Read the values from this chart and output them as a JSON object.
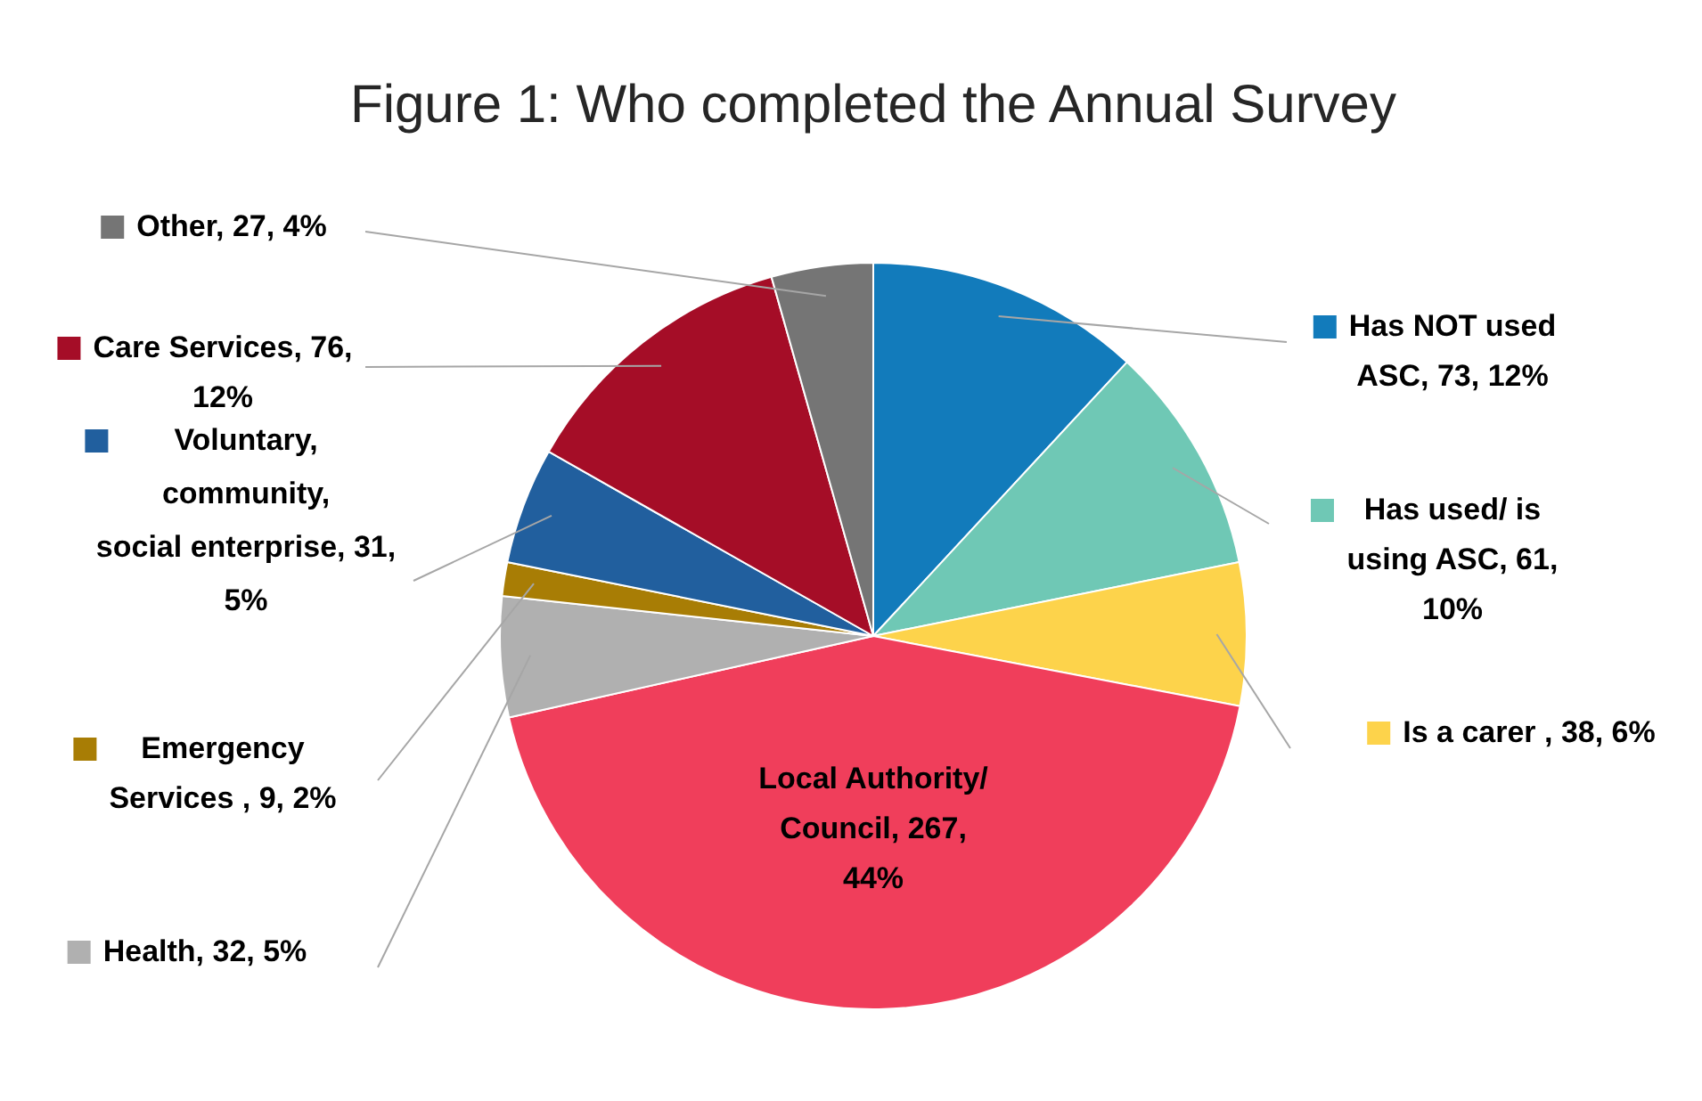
{
  "chart_data": {
    "type": "pie",
    "title": "Figure 1: Who completed the Annual Survey",
    "categories": [
      "Has NOT used ASC",
      "Has used/ is using ASC",
      "Is a carer ",
      "Local Authority/ Council",
      "Health",
      "Emergency Services ",
      "Voluntary, community, social enterprise",
      "Care Services",
      "Other"
    ],
    "values": [
      73,
      61,
      38,
      267,
      32,
      9,
      31,
      76,
      27
    ],
    "value_labels": [
      "73, 12%",
      "61, 10%",
      "38, 6%",
      "267, 44%",
      "32, 5%",
      "9, 2%",
      "31, 5%",
      "76, 12%",
      "27, 4%"
    ],
    "colors": [
      "#127bbb",
      "#6fc8b5",
      "#fdd34b",
      "#f03e5b",
      "#b0b0b0",
      "#a87d05",
      "#215f9e",
      "#a50d27",
      "#757575"
    ],
    "legend": "left"
  }
}
